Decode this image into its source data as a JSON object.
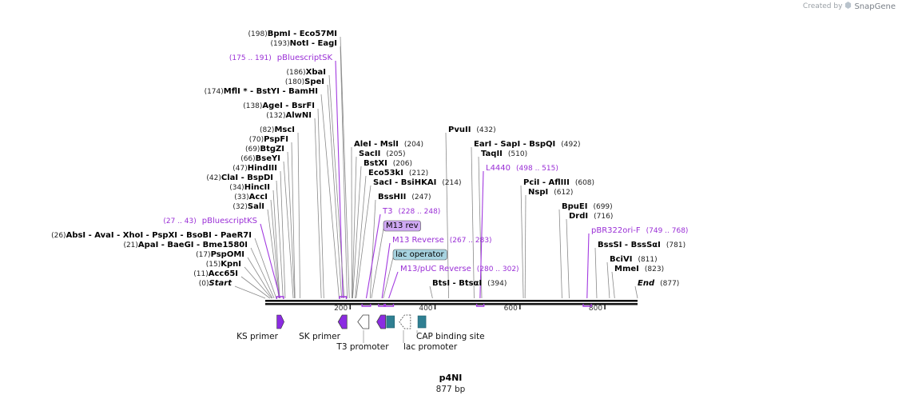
{
  "credit": {
    "created_by": "Created by",
    "brand": "SnapGene"
  },
  "title": {
    "name": "p4NI",
    "length": "877 bp"
  },
  "sequence_length": 877,
  "scale_ticks": [
    {
      "pos": 200,
      "label": "200"
    },
    {
      "pos": 400,
      "label": "400"
    },
    {
      "pos": 600,
      "label": "600"
    },
    {
      "pos": 800,
      "label": "800"
    }
  ],
  "site_groups": [
    {
      "pos": 198,
      "parts": [
        {
          "t": "(198)",
          "k": "n"
        },
        {
          "t": "BpmI",
          "k": "e"
        },
        {
          "t": " - Eco57MI",
          "k": "e"
        }
      ]
    },
    {
      "pos": 193,
      "parts": [
        {
          "t": "(193)",
          "k": "n"
        },
        {
          "t": "NotI",
          "k": "e"
        },
        {
          "t": " - EagI",
          "k": "e"
        }
      ]
    },
    {
      "pos": 183,
      "primer": true,
      "parts": [
        {
          "t": "(175 .. 191)",
          "k": "p"
        },
        {
          "t": "pBluescriptSK",
          "k": "p"
        }
      ]
    },
    {
      "pos": 186,
      "parts": [
        {
          "t": "(186)",
          "k": "n"
        },
        {
          "t": "XbaI",
          "k": "e"
        }
      ]
    },
    {
      "pos": 180,
      "parts": [
        {
          "t": "(180)",
          "k": "n"
        },
        {
          "t": "SpeI",
          "k": "e"
        }
      ]
    },
    {
      "pos": 174,
      "parts": [
        {
          "t": "(174)",
          "k": "n"
        },
        {
          "t": "MflI * - BstYI",
          "k": "e"
        },
        {
          "t": " - BamHI",
          "k": "e"
        }
      ]
    },
    {
      "pos": 138,
      "parts": [
        {
          "t": "(138)",
          "k": "n"
        },
        {
          "t": "AgeI",
          "k": "e"
        },
        {
          "t": " - BsrFI",
          "k": "e"
        }
      ]
    },
    {
      "pos": 132,
      "parts": [
        {
          "t": "(132)",
          "k": "n"
        },
        {
          "t": "AlwNI",
          "k": "e"
        }
      ]
    },
    {
      "pos": 82,
      "parts": [
        {
          "t": "(82)",
          "k": "n"
        },
        {
          "t": "MscI",
          "k": "e"
        }
      ]
    },
    {
      "pos": 70,
      "parts": [
        {
          "t": "(70)",
          "k": "n"
        },
        {
          "t": "PspFI",
          "k": "e"
        }
      ]
    },
    {
      "pos": 69,
      "parts": [
        {
          "t": "(69)",
          "k": "n"
        },
        {
          "t": "BtgZI",
          "k": "e"
        }
      ]
    },
    {
      "pos": 66,
      "parts": [
        {
          "t": "(66)",
          "k": "n"
        },
        {
          "t": "BseYI",
          "k": "e"
        }
      ]
    },
    {
      "pos": 47,
      "parts": [
        {
          "t": "(47)",
          "k": "n"
        },
        {
          "t": "HindIII",
          "k": "e"
        }
      ]
    },
    {
      "pos": 42,
      "parts": [
        {
          "t": "(42)",
          "k": "n"
        },
        {
          "t": "ClaI",
          "k": "e"
        },
        {
          "t": " - BspDI",
          "k": "e"
        }
      ]
    },
    {
      "pos": 34,
      "parts": [
        {
          "t": "(34)",
          "k": "n"
        },
        {
          "t": "HincII",
          "k": "e"
        }
      ]
    },
    {
      "pos": 33,
      "parts": [
        {
          "t": "(33)",
          "k": "n"
        },
        {
          "t": "AccI",
          "k": "e"
        }
      ]
    },
    {
      "pos": 32,
      "parts": [
        {
          "t": "(32)",
          "k": "n"
        },
        {
          "t": "SalI",
          "k": "e"
        }
      ]
    },
    {
      "pos": 35,
      "primer": true,
      "parts": [
        {
          "t": "(27 .. 43)",
          "k": "p"
        },
        {
          "t": "pBluescriptKS",
          "k": "p"
        }
      ]
    },
    {
      "pos": 26,
      "parts": [
        {
          "t": "(26)",
          "k": "n"
        },
        {
          "t": "AbsI",
          "k": "e"
        },
        {
          "t": " - AvaI",
          "k": "e"
        },
        {
          "t": " - XhoI",
          "k": "e"
        },
        {
          "t": " - PspXI",
          "k": "e"
        },
        {
          "t": " - BsoBI",
          "k": "e"
        },
        {
          "t": " - PaeR7I",
          "k": "e"
        }
      ]
    },
    {
      "pos": 21,
      "parts": [
        {
          "t": "(21)",
          "k": "n"
        },
        {
          "t": "ApaI",
          "k": "e"
        },
        {
          "t": " - BaeGI",
          "k": "e"
        },
        {
          "t": " - Bme1580I",
          "k": "e"
        }
      ]
    },
    {
      "pos": 17,
      "parts": [
        {
          "t": "(17)",
          "k": "n"
        },
        {
          "t": "PspOMI",
          "k": "e"
        }
      ]
    },
    {
      "pos": 15,
      "parts": [
        {
          "t": "(15)",
          "k": "n"
        },
        {
          "t": "KpnI",
          "k": "e"
        }
      ]
    },
    {
      "pos": 11,
      "parts": [
        {
          "t": "(11)",
          "k": "n"
        },
        {
          "t": "Acc65I",
          "k": "e"
        }
      ]
    },
    {
      "pos": 0,
      "parts": [
        {
          "t": "(0)",
          "k": "n"
        },
        {
          "t": "Start",
          "k": "i"
        }
      ]
    },
    {
      "pos": 204,
      "parts": [
        {
          "t": "AleI",
          "k": "e"
        },
        {
          "t": " - MslI",
          "k": "e"
        },
        {
          "t": "(204)",
          "k": "n"
        }
      ]
    },
    {
      "pos": 205,
      "parts": [
        {
          "t": "SacII",
          "k": "e"
        },
        {
          "t": "(205)",
          "k": "n"
        }
      ]
    },
    {
      "pos": 206,
      "parts": [
        {
          "t": "BstXI",
          "k": "e"
        },
        {
          "t": "(206)",
          "k": "n"
        }
      ]
    },
    {
      "pos": 212,
      "parts": [
        {
          "t": "Eco53kI",
          "k": "e"
        },
        {
          "t": "(212)",
          "k": "n"
        }
      ]
    },
    {
      "pos": 214,
      "parts": [
        {
          "t": "SacI",
          "k": "e"
        },
        {
          "t": " - BsiHKAI",
          "k": "e"
        },
        {
          "t": "(214)",
          "k": "n"
        }
      ]
    },
    {
      "pos": 247,
      "parts": [
        {
          "t": "BssHII",
          "k": "e"
        },
        {
          "t": "(247)",
          "k": "n"
        }
      ]
    },
    {
      "pos": 238,
      "primer": true,
      "parts": [
        {
          "t": "T3",
          "k": "p"
        },
        {
          "t": "(228 .. 248)",
          "k": "p"
        }
      ]
    },
    {
      "pos": 250,
      "feature": true,
      "fill": "#cfa9f3",
      "parts": [
        {
          "t": "M13 rev",
          "k": "f"
        }
      ]
    },
    {
      "pos": 275,
      "primer": true,
      "parts": [
        {
          "t": "M13 Reverse",
          "k": "p"
        },
        {
          "t": "(267 .. 283)",
          "k": "p"
        }
      ]
    },
    {
      "pos": 278,
      "feature": true,
      "fill": "#a7d3e0",
      "parts": [
        {
          "t": "lac operator",
          "k": "f"
        }
      ]
    },
    {
      "pos": 291,
      "primer": true,
      "parts": [
        {
          "t": "M13/pUC Reverse",
          "k": "p"
        },
        {
          "t": "(280 .. 302)",
          "k": "p"
        }
      ]
    },
    {
      "pos": 394,
      "parts": [
        {
          "t": "BtsI",
          "k": "e"
        },
        {
          "t": " - BtsαI",
          "k": "e"
        },
        {
          "t": "(394)",
          "k": "n"
        }
      ]
    },
    {
      "pos": 432,
      "parts": [
        {
          "t": "PvuII",
          "k": "e"
        },
        {
          "t": "(432)",
          "k": "n"
        }
      ]
    },
    {
      "pos": 492,
      "parts": [
        {
          "t": "EarI",
          "k": "e"
        },
        {
          "t": " - SapI",
          "k": "e"
        },
        {
          "t": " - BspQI",
          "k": "e"
        },
        {
          "t": "(492)",
          "k": "n"
        }
      ]
    },
    {
      "pos": 510,
      "parts": [
        {
          "t": "TaqII",
          "k": "e"
        },
        {
          "t": "(510)",
          "k": "n"
        }
      ]
    },
    {
      "pos": 506,
      "primer": true,
      "parts": [
        {
          "t": "L4440",
          "k": "p"
        },
        {
          "t": "(498 .. 515)",
          "k": "p"
        }
      ]
    },
    {
      "pos": 608,
      "parts": [
        {
          "t": "PciI",
          "k": "e"
        },
        {
          "t": " - AflIII",
          "k": "e"
        },
        {
          "t": "(608)",
          "k": "n"
        }
      ]
    },
    {
      "pos": 612,
      "parts": [
        {
          "t": "NspI",
          "k": "e"
        },
        {
          "t": "(612)",
          "k": "n"
        }
      ]
    },
    {
      "pos": 699,
      "parts": [
        {
          "t": "BpuEI",
          "k": "e"
        },
        {
          "t": "(699)",
          "k": "n"
        }
      ]
    },
    {
      "pos": 716,
      "parts": [
        {
          "t": "DrdI",
          "k": "e"
        },
        {
          "t": "(716)",
          "k": "n"
        }
      ]
    },
    {
      "pos": 758,
      "primer": true,
      "parts": [
        {
          "t": "pBR322ori-F",
          "k": "p"
        },
        {
          "t": "(749 .. 768)",
          "k": "p"
        }
      ]
    },
    {
      "pos": 781,
      "parts": [
        {
          "t": "BssSI",
          "k": "e"
        },
        {
          "t": " - BssSαI",
          "k": "e"
        },
        {
          "t": "(781)",
          "k": "n"
        }
      ]
    },
    {
      "pos": 811,
      "parts": [
        {
          "t": "BciVI",
          "k": "e"
        },
        {
          "t": "(811)",
          "k": "n"
        }
      ]
    },
    {
      "pos": 823,
      "parts": [
        {
          "t": "MmeI",
          "k": "e"
        },
        {
          "t": "(823)",
          "k": "n"
        }
      ]
    },
    {
      "pos": 877,
      "parts": [
        {
          "t": "End",
          "k": "i"
        },
        {
          "t": "(877)",
          "k": "n"
        }
      ]
    }
  ],
  "primer_bars": [
    {
      "start": 27,
      "end": 43,
      "strand": "top"
    },
    {
      "start": 175,
      "end": 191,
      "strand": "top"
    },
    {
      "start": 228,
      "end": 248,
      "strand": "bottom"
    },
    {
      "start": 267,
      "end": 283,
      "strand": "bottom"
    },
    {
      "start": 280,
      "end": 302,
      "strand": "bottom"
    },
    {
      "start": 498,
      "end": 515,
      "strand": "bottom"
    },
    {
      "start": 749,
      "end": 768,
      "strand": "bottom"
    }
  ],
  "features": [
    {
      "name": "KS primer",
      "type": "primer_bind",
      "pos": 35,
      "dir": "right",
      "color": "#8b2be2",
      "label": "KS primer"
    },
    {
      "name": "SK primer",
      "type": "primer_bind",
      "pos": 183,
      "dir": "left",
      "color": "#8b2be2",
      "label": "SK primer"
    },
    {
      "name": "T3 promoter",
      "type": "promoter",
      "pos": 232,
      "dir": "left",
      "color": "#ffffff",
      "label": "T3 promoter"
    },
    {
      "name": "M13 rev",
      "type": "primer_bind",
      "pos": 274,
      "dir": "left",
      "color": "#8b2be2",
      "label": ""
    },
    {
      "name": "lac operator",
      "type": "protein_bind",
      "pos": 295,
      "dir": "none",
      "color": "#2f7f92",
      "label": ""
    },
    {
      "name": "lac promoter",
      "type": "promoter",
      "pos": 330,
      "dir": "left",
      "color": "#ffffff",
      "dashed": true,
      "label": "lac promoter"
    },
    {
      "name": "CAP binding site",
      "type": "protein_bind",
      "pos": 369,
      "dir": "none",
      "color": "#2f7f92",
      "label": "CAP binding site"
    }
  ]
}
